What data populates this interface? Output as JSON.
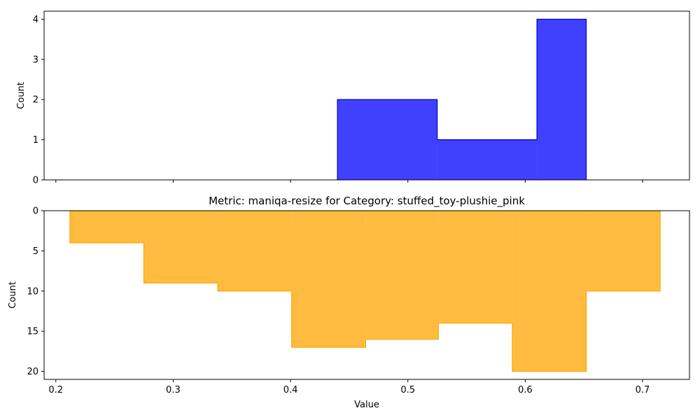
{
  "chart_data": [
    {
      "type": "histogram",
      "title": "",
      "xlabel": "",
      "ylabel": "Count",
      "xlim": [
        0.19,
        0.74
      ],
      "ylim": [
        0,
        4.2
      ],
      "y_inverted": false,
      "color": "#0000ff",
      "edge_color": "#0000cc",
      "yticks": [
        0,
        1,
        2,
        3,
        4
      ],
      "xticks_shown": false,
      "bins": [
        {
          "x0": 0.44,
          "x1": 0.525,
          "count": 2
        },
        {
          "x0": 0.525,
          "x1": 0.61,
          "count": 1
        },
        {
          "x0": 0.61,
          "x1": 0.652,
          "count": 4
        }
      ]
    },
    {
      "type": "histogram",
      "title": "Metric: maniqa-resize for Category: stuffed_toy-plushie_pink",
      "xlabel": "Value",
      "ylabel": "Count",
      "xlim": [
        0.19,
        0.74
      ],
      "ylim": [
        0,
        21
      ],
      "y_inverted": true,
      "color": "#ffa500",
      "edge_color": "#ffa500",
      "yticks": [
        0,
        5,
        10,
        15,
        20
      ],
      "xticks": [
        0.2,
        0.3,
        0.4,
        0.5,
        0.6,
        0.7
      ],
      "bins": [
        {
          "x0": 0.212,
          "x1": 0.275,
          "count": 4
        },
        {
          "x0": 0.275,
          "x1": 0.338,
          "count": 9
        },
        {
          "x0": 0.338,
          "x1": 0.401,
          "count": 10
        },
        {
          "x0": 0.401,
          "x1": 0.464,
          "count": 17
        },
        {
          "x0": 0.464,
          "x1": 0.526,
          "count": 16
        },
        {
          "x0": 0.526,
          "x1": 0.589,
          "count": 14
        },
        {
          "x0": 0.589,
          "x1": 0.652,
          "count": 20
        },
        {
          "x0": 0.652,
          "x1": 0.715,
          "count": 10
        }
      ]
    }
  ]
}
